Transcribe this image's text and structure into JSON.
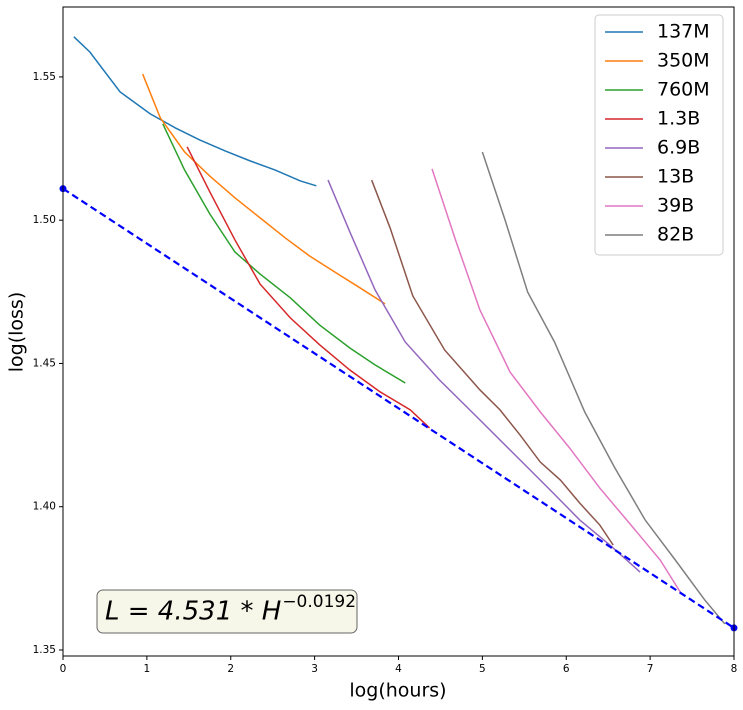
{
  "chart_data": {
    "type": "line",
    "xlabel": "log(hours)",
    "ylabel": "log(loss)",
    "xlim": [
      0,
      8
    ],
    "ylim": [
      1.3479,
      1.5744
    ],
    "xticks": [
      0,
      1,
      2,
      3,
      4,
      5,
      6,
      7,
      8
    ],
    "yticks": [
      1.35,
      {
        "value": 1.4,
        "label": "1.40"
      },
      1.45,
      {
        "value": 1.5,
        "label": "1.50"
      },
      1.55
    ],
    "grid": false,
    "legend": "upper right",
    "series": [
      {
        "name": "137M",
        "color": "#1f77b4",
        "x": [
          0.13,
          0.32,
          0.68,
          1.04,
          1.34,
          1.63,
          1.93,
          2.23,
          2.53,
          2.83,
          3.02
        ],
        "values": [
          1.564,
          1.5587,
          1.5448,
          1.5371,
          1.5322,
          1.528,
          1.5242,
          1.5207,
          1.5175,
          1.5137,
          1.512
        ]
      },
      {
        "name": "350M",
        "color": "#ff7f0e",
        "x": [
          0.95,
          1.16,
          1.45,
          1.75,
          2.05,
          2.35,
          2.65,
          2.94,
          3.24,
          3.54,
          3.84
        ],
        "values": [
          1.551,
          1.5357,
          1.5238,
          1.5154,
          1.5078,
          1.5008,
          1.4938,
          1.4875,
          1.4819,
          1.4764,
          1.4708
        ]
      },
      {
        "name": "760M",
        "color": "#2ca02c",
        "x": [
          1.19,
          1.45,
          1.75,
          2.05,
          2.35,
          2.71,
          3.06,
          3.42,
          3.72,
          4.08
        ],
        "values": [
          1.5336,
          1.5175,
          1.5022,
          1.4889,
          1.4812,
          1.4729,
          1.4634,
          1.4554,
          1.4495,
          1.4432
        ]
      },
      {
        "name": "1.3B",
        "color": "#d62728",
        "x": [
          1.48,
          1.75,
          2.05,
          2.35,
          2.71,
          3.06,
          3.42,
          3.78,
          4.14,
          4.37
        ],
        "values": [
          1.5256,
          1.5099,
          1.4931,
          1.4777,
          1.4659,
          1.4565,
          1.4477,
          1.4401,
          1.4338,
          1.4275
        ]
      },
      {
        "name": "6.9B",
        "color": "#9467bd",
        "x": [
          3.16,
          3.42,
          3.72,
          4.08,
          4.49,
          4.97,
          5.45,
          5.81,
          6.16,
          6.52,
          6.88
        ],
        "values": [
          1.514,
          1.4959,
          1.4757,
          1.4575,
          1.4442,
          1.4303,
          1.4163,
          1.4058,
          1.3954,
          1.3866,
          1.3772
        ]
      },
      {
        "name": "13B",
        "color": "#8c564b",
        "x": [
          3.68,
          3.9,
          4.17,
          4.55,
          4.97,
          5.21,
          5.45,
          5.69,
          5.93,
          6.16,
          6.4,
          6.56
        ],
        "values": [
          1.514,
          1.4973,
          1.4736,
          1.4547,
          1.4408,
          1.4338,
          1.425,
          1.4156,
          1.4093,
          1.4013,
          1.3936,
          1.3866
        ]
      },
      {
        "name": "39B",
        "color": "#e377c2",
        "x": [
          4.4,
          4.68,
          4.97,
          5.33,
          5.69,
          6.04,
          6.4,
          6.76,
          7.12,
          7.36
        ],
        "values": [
          1.5179,
          1.4931,
          1.4687,
          1.447,
          1.4331,
          1.4205,
          1.4065,
          1.394,
          1.3814,
          1.3702
        ]
      },
      {
        "name": "82B",
        "color": "#7f7f7f",
        "x": [
          5.0,
          5.27,
          5.54,
          5.86,
          6.22,
          6.58,
          6.94,
          7.3,
          7.65,
          7.89
        ],
        "values": [
          1.5238,
          1.5001,
          1.4749,
          1.4575,
          1.4331,
          1.4135,
          1.3954,
          1.3814,
          1.3675,
          1.3591
        ]
      }
    ],
    "fit": {
      "color": "#0000ff",
      "x": [
        0,
        8
      ],
      "values": [
        1.511,
        1.3577
      ]
    },
    "annotation": {
      "text": "L = 4.531 * H",
      "exponent": "−0.0192"
    }
  }
}
